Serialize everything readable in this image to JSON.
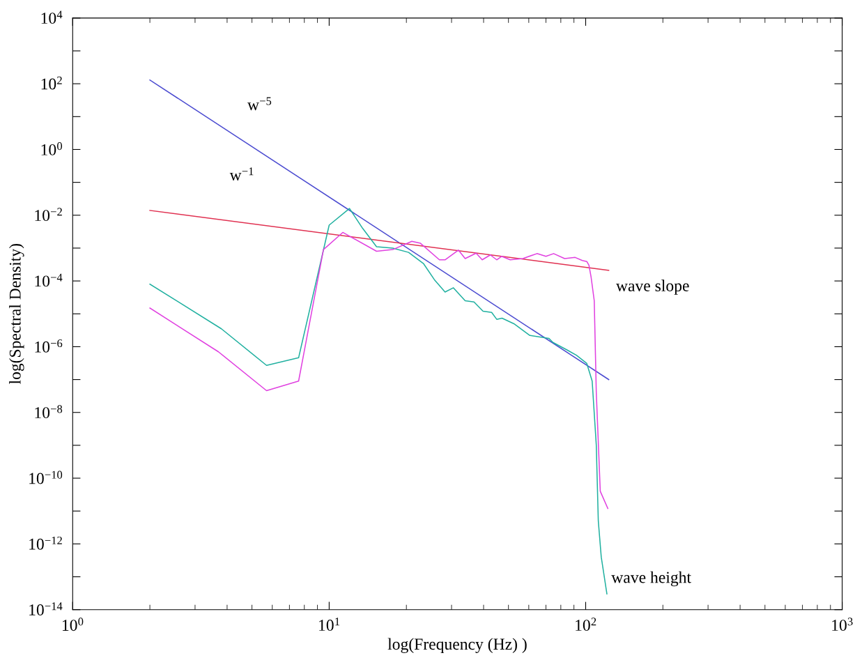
{
  "chart_data": {
    "type": "line",
    "xlabel": "log(Frequency (Hz) )",
    "ylabel": "log(Spectral Density)",
    "log": "xy",
    "xlim": [
      1,
      1000
    ],
    "ylim": [
      1e-14,
      10000
    ],
    "xticks": [
      {
        "value": 1,
        "label": "10$^{0}$"
      },
      {
        "value": 10,
        "label": "10$^{1}$"
      },
      {
        "value": 100,
        "label": "10$^{2}$"
      },
      {
        "value": 1000,
        "label": "10$^{3}$"
      }
    ],
    "yticks": [
      {
        "value": 1e-14,
        "label": "10$^{−14}$"
      },
      {
        "value": 1e-13,
        "label": null
      },
      {
        "value": 1e-12,
        "label": "10$^{−12}$"
      },
      {
        "value": 1e-11,
        "label": null
      },
      {
        "value": 1e-10,
        "label": "10$^{−10}$"
      },
      {
        "value": 1e-09,
        "label": null
      },
      {
        "value": 1e-08,
        "label": "10$^{−8}$"
      },
      {
        "value": 1e-07,
        "label": null
      },
      {
        "value": 1e-06,
        "label": "10$^{−6}$"
      },
      {
        "value": 1e-05,
        "label": null
      },
      {
        "value": 0.0001,
        "label": "10$^{−4}$"
      },
      {
        "value": 0.001,
        "label": null
      },
      {
        "value": 0.01,
        "label": "10$^{−2}$"
      },
      {
        "value": 0.1,
        "label": null
      },
      {
        "value": 1,
        "label": "10$^{0}$"
      },
      {
        "value": 10,
        "label": null
      },
      {
        "value": 100,
        "label": "10$^{2}$"
      },
      {
        "value": 1000,
        "label": null
      },
      {
        "value": 10000,
        "label": "10$^{4}$"
      }
    ],
    "grid": false,
    "marker": "none",
    "line_style": "solid",
    "series": [
      {
        "color": "#4a4ad0",
        "x": [
          2,
          123
        ],
        "values": [
          130,
          1e-07
        ]
      },
      {
        "color": "#e03050",
        "x": [
          2,
          123
        ],
        "values": [
          0.014,
          0.00021
        ]
      },
      {
        "color": "#20b0a0",
        "x": [
          2,
          3.8,
          5.7,
          7.6,
          10,
          12,
          13.5,
          15.3,
          17.7,
          20.4,
          23.3,
          25.7,
          28.3,
          30.5,
          33.9,
          36.7,
          39.8,
          43,
          45,
          47.2,
          52.5,
          60.6,
          71.8,
          74.5,
          84.5,
          92,
          101,
          106,
          110,
          112,
          115,
          121
        ],
        "values": [
          8e-05,
          3.5e-06,
          2.7e-07,
          4.6e-07,
          0.005,
          0.016,
          0.004,
          0.0011,
          0.001,
          0.00074,
          0.00034,
          0.00011,
          4.6e-05,
          6.2e-05,
          2.5e-05,
          2.3e-05,
          1.2e-05,
          1.1e-05,
          6.8e-06,
          7.4e-06,
          5e-06,
          2.2e-06,
          1.8e-06,
          1.35e-06,
          8e-07,
          5.5e-07,
          3.1e-07,
          9e-08,
          1e-09,
          5e-12,
          4e-13,
          3e-14
        ]
      },
      {
        "color": "#e040e0",
        "x": [
          2,
          3.7,
          5.7,
          7.6,
          9.5,
          11.3,
          15.3,
          17.7,
          21,
          22.7,
          26.9,
          28.3,
          31.9,
          33.9,
          37.4,
          39.5,
          42.5,
          45,
          47,
          50.8,
          56.9,
          64.6,
          70,
          75,
          82.8,
          91,
          97,
          101,
          103,
          105,
          108,
          110,
          114,
          122
        ],
        "values": [
          1.5e-05,
          7e-07,
          4.6e-08,
          9e-08,
          0.0009,
          0.003,
          0.0008,
          0.0009,
          0.0016,
          0.0014,
          0.00044,
          0.00044,
          0.00087,
          0.00048,
          0.0007,
          0.00044,
          0.00062,
          0.00044,
          0.00056,
          0.00044,
          0.00048,
          0.00068,
          0.00056,
          0.00068,
          0.00048,
          0.00052,
          0.00042,
          0.00039,
          0.0003,
          0.00013,
          2.5e-05,
          4e-08,
          4e-11,
          1.2e-11
        ]
      }
    ],
    "annotations": [
      "w$^{−5}$",
      "w$^{−1}$",
      "wave slope",
      "wave height"
    ]
  }
}
